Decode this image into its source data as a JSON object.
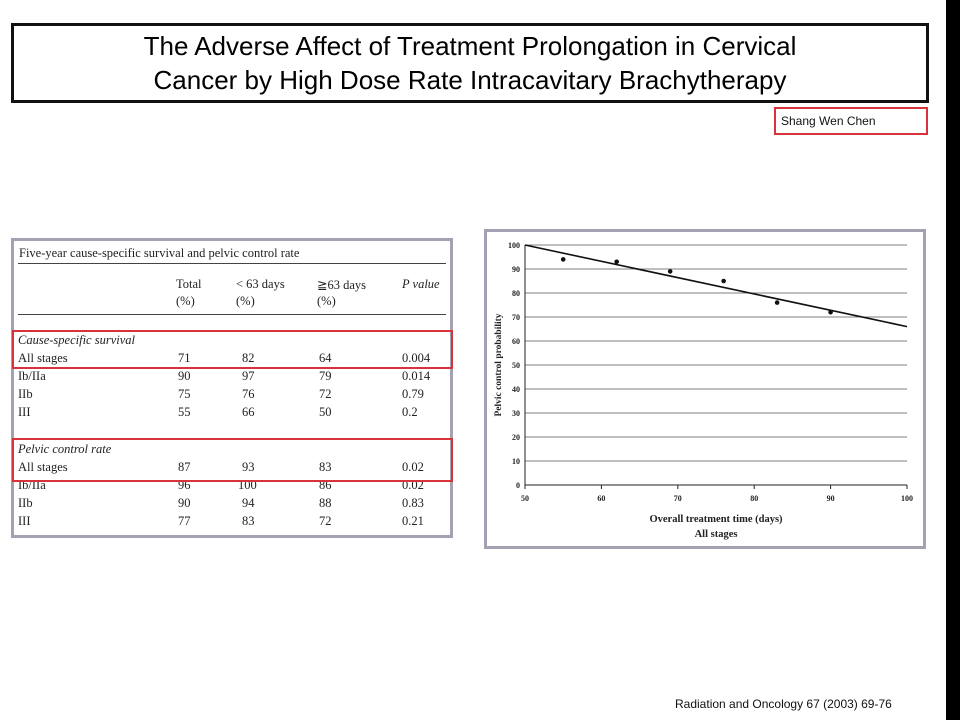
{
  "slide": {
    "title_line1": "The Adverse Affect of Treatment Prolongation in Cervical",
    "title_line2": "Cancer by High Dose Rate Intracavitary Brachytherapy",
    "author": "Shang Wen Chen",
    "reference": "Radiation and Oncology 67 (2003) 69-76"
  },
  "colors": {
    "highlight": "#d6333a",
    "panel_border": "#a2a2b2",
    "side_bar": "#000000"
  },
  "table": {
    "caption": "Five-year cause-specific survival and pelvic control rate",
    "headers": [
      {
        "top": "Total",
        "bottom": "(%)"
      },
      {
        "top": "< 63 days",
        "bottom": "(%)"
      },
      {
        "top": "≧63 days",
        "bottom": "(%)"
      },
      {
        "top": "P value",
        "bottom": ""
      }
    ],
    "sections": [
      {
        "title": "Cause-specific survival",
        "rows": [
          {
            "label": "All stages",
            "total": "71",
            "lt63": "82",
            "ge63": "64",
            "p": "0.004"
          },
          {
            "label": "Ib/IIa",
            "total": "90",
            "lt63": "97",
            "ge63": "79",
            "p": "0.014"
          },
          {
            "label": "IIb",
            "total": "75",
            "lt63": "76",
            "ge63": "72",
            "p": "0.79"
          },
          {
            "label": "III",
            "total": "55",
            "lt63": "66",
            "ge63": "50",
            "p": "0.2"
          }
        ]
      },
      {
        "title": "Pelvic control rate",
        "rows": [
          {
            "label": "All stages",
            "total": "87",
            "lt63": "93",
            "ge63": "83",
            "p": "0.02"
          },
          {
            "label": "Ib/IIa",
            "total": "96",
            "lt63": "100",
            "ge63": "86",
            "p": "0.02"
          },
          {
            "label": "IIb",
            "total": "90",
            "lt63": "94",
            "ge63": "88",
            "p": "0.83"
          },
          {
            "label": "III",
            "total": "77",
            "lt63": "83",
            "ge63": "72",
            "p": "0.21"
          }
        ]
      }
    ]
  },
  "chart_data": {
    "type": "scatter",
    "title": "",
    "xlabel": "Overall treatment time (days)",
    "xlabel2": "All stages",
    "ylabel": "Pelvic control probability",
    "xlim": [
      50,
      100
    ],
    "ylim": [
      0,
      100
    ],
    "x_ticks": [
      50,
      60,
      70,
      80,
      90,
      100
    ],
    "y_ticks": [
      0,
      10,
      20,
      30,
      40,
      50,
      60,
      70,
      80,
      90,
      100
    ],
    "grid": true,
    "points": [
      {
        "x": 55,
        "y": 94
      },
      {
        "x": 62,
        "y": 93
      },
      {
        "x": 69,
        "y": 89
      },
      {
        "x": 76,
        "y": 85
      },
      {
        "x": 83,
        "y": 76
      },
      {
        "x": 90,
        "y": 72
      }
    ],
    "trend_line": {
      "x": [
        50,
        100
      ],
      "y": [
        100,
        66
      ]
    }
  }
}
